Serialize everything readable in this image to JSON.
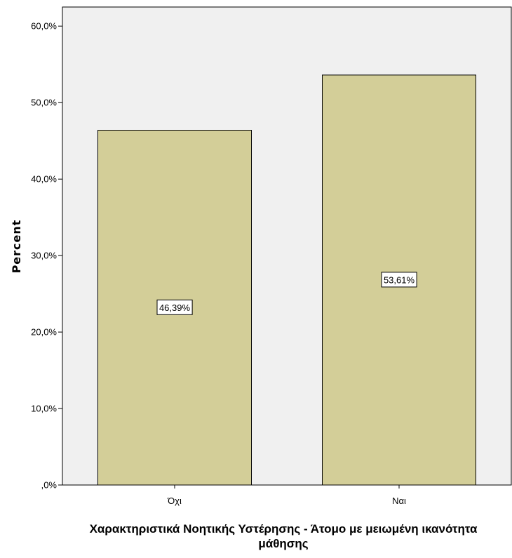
{
  "chart_data": {
    "type": "bar",
    "categories": [
      "Όχι",
      "Ναι"
    ],
    "values": [
      46.39,
      53.61
    ],
    "data_labels": [
      "46,39%",
      "53,61%"
    ],
    "title": "",
    "xlabel_lines": [
      "Χαρακτηριστικά Νοητικής Υστέρησης - Άτομο με μειωμένη ικανότητα",
      "μάθησης"
    ],
    "ylabel": "Percent",
    "ylim": [
      0,
      62.5
    ],
    "yticks": [
      0,
      10,
      20,
      30,
      40,
      50,
      60
    ],
    "ytick_labels": [
      ",0%",
      "10,0%",
      "20,0%",
      "30,0%",
      "40,0%",
      "50,0%",
      "60,0%"
    ],
    "grid": false,
    "colors": {
      "bar_fill": "#d3ce98",
      "bar_stroke": "#000000",
      "plot_background": "#f0f0f0",
      "label_box_fill": "#ffffff"
    }
  }
}
